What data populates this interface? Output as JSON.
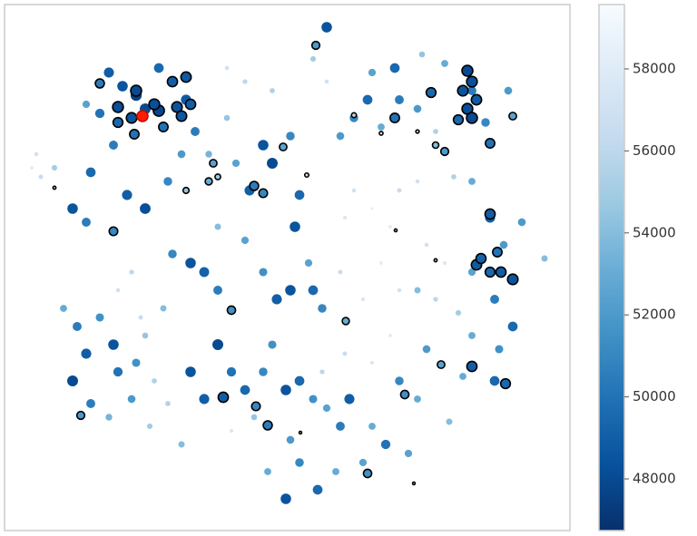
{
  "chart_data": {
    "type": "scatter",
    "xlim": [
      5,
      628
    ],
    "ylim": [
      585,
      5
    ],
    "colorbar": {
      "colormap": "Blues_r",
      "clim": [
        46740,
        59570
      ],
      "ticks": [
        48000,
        50000,
        52000,
        54000,
        56000,
        58000
      ]
    },
    "series": [
      {
        "edgecolor": "none",
        "x": [
          120,
          135,
          150,
          160,
          175,
          190,
          205,
          110,
          95,
          125,
          100,
          80,
          95,
          60,
          45,
          140,
          160,
          185,
          200,
          215,
          230,
          250,
          270,
          250,
          300,
          290,
          300,
          320,
          330,
          325,
          275,
          260,
          240,
          210,
          225,
          190,
          240,
          270,
          290,
          305,
          320,
          345,
          355,
          340,
          360,
          345,
          360,
          375,
          390,
          405,
          410,
          435,
          440,
          465,
          490,
          460,
          480,
          500,
          520,
          540,
          575,
          555,
          520,
          545,
          565,
          550,
          520,
          505,
          480,
          460,
          440,
          490,
          470,
          430,
          410,
          390,
          380,
          440,
          460,
          420,
          400,
          375,
          70,
          85,
          110,
          125,
          95,
          80,
          100,
          130,
          150,
          160,
          170,
          145,
          120,
          165,
          185,
          200,
          210,
          225,
          240,
          255,
          270,
          290,
          300,
          315,
          330,
          345,
          360,
          375,
          385,
          410,
          425,
          400,
          370,
          350,
          330,
          315,
          295,
          280,
          320,
          255,
          440,
          460,
          470,
          450,
          495,
          510,
          545,
          430,
          410,
          380,
          355,
          180,
          155,
          145,
          130,
          40,
          35,
          600,
          420,
          520,
          535,
          560
        ],
        "y": [
          80,
          95,
          105,
          120,
          75,
          90,
          110,
          125,
          115,
          160,
          190,
          230,
          245,
          185,
          195,
          215,
          230,
          200,
          170,
          145,
          170,
          130,
          90,
          75,
          100,
          160,
          180,
          150,
          215,
          250,
          210,
          180,
          250,
          290,
          300,
          280,
          320,
          265,
          300,
          330,
          320,
          320,
          340,
          290,
          90,
          65,
          30,
          150,
          130,
          110,
          80,
          75,
          110,
          60,
          70,
          120,
          145,
          195,
          200,
          240,
          245,
          270,
          300,
          330,
          360,
          385,
          370,
          345,
          330,
          320,
          320,
          290,
          270,
          250,
          230,
          210,
          240,
          210,
          200,
          290,
          330,
          300,
          340,
          360,
          350,
          380,
          390,
          420,
          445,
          410,
          400,
          370,
          420,
          440,
          460,
          470,
          445,
          490,
          410,
          440,
          380,
          410,
          430,
          410,
          380,
          430,
          420,
          440,
          450,
          470,
          440,
          470,
          490,
          510,
          520,
          540,
          510,
          550,
          520,
          460,
          485,
          475,
          420,
          440,
          385,
          500,
          465,
          415,
          420,
          370,
          400,
          390,
          410,
          340,
          350,
          300,
          320,
          170,
          185,
          285,
          140,
          100,
          135,
          100
        ],
        "values": [
          49000,
          48500,
          47500,
          48000,
          49500,
          48200,
          48800,
          50000,
          52500,
          50500,
          49500,
          48500,
          50500,
          55000,
          56500,
          49000,
          48200,
          51000,
          52000,
          50500,
          53500,
          54500,
          56000,
          57000,
          55500,
          48500,
          48000,
          51000,
          49500,
          48500,
          49000,
          52500,
          54000,
          48500,
          49200,
          51000,
          50500,
          52500,
          51500,
          49000,
          48500,
          49500,
          51000,
          52500,
          57000,
          55000,
          48500,
          52000,
          51000,
          49500,
          52500,
          49500,
          50500,
          54500,
          53000,
          52000,
          55500,
          55500,
          53000,
          49000,
          52000,
          52000,
          52500,
          50500,
          49500,
          51500,
          53000,
          55000,
          56000,
          54000,
          57000,
          57500,
          57000,
          58000,
          58500,
          57000,
          57500,
          56500,
          57000,
          58000,
          57500,
          56500,
          53000,
          50500,
          51500,
          48500,
          49000,
          48000,
          50500,
          50000,
          51500,
          54500,
          55500,
          52000,
          53500,
          55000,
          55500,
          54000,
          48500,
          49000,
          48000,
          50000,
          49500,
          51000,
          51500,
          48500,
          49500,
          51500,
          52500,
          50500,
          49000,
          53000,
          50000,
          52500,
          53000,
          49500,
          51000,
          48500,
          53000,
          54500,
          52000,
          57500,
          51000,
          53000,
          52000,
          52500,
          54000,
          53000,
          49500,
          58000,
          57500,
          56500,
          56000,
          54000,
          56500,
          56000,
          57000,
          57000,
          58000,
          54000,
          53000,
          50500,
          51000,
          52000
        ]
      },
      {
        "edgecolor": "#000000",
        "x": [
          110,
          150,
          130,
          145,
          175,
          195,
          210,
          130,
          180,
          200,
          148,
          190,
          205,
          170,
          515,
          520,
          510,
          525,
          515,
          505,
          520,
          475,
          540,
          565,
          480,
          490,
          435,
          390,
          420,
          460,
          280,
          290,
          235,
          240,
          230,
          205,
          312,
          338,
          348,
          125,
          60,
          540,
          548,
          525,
          540,
          552,
          565,
          530,
          480,
          436,
          255,
          381,
          486,
          520,
          557,
          446,
          246,
          282,
          295,
          89,
          405,
          331,
          456
        ],
        "y": [
          92,
          100,
          118,
          130,
          122,
          118,
          115,
          135,
          140,
          128,
          148,
          90,
          85,
          115,
          78,
          90,
          100,
          110,
          120,
          132,
          130,
          102,
          158,
          128,
          160,
          167,
          130,
          127,
          147,
          145,
          205,
          213,
          180,
          195,
          200,
          210,
          162,
          193,
          50,
          255,
          207,
          236,
          278,
          292,
          300,
          300,
          308,
          285,
          287,
          254,
          342,
          354,
          402,
          404,
          423,
          435,
          438,
          448,
          469,
          458,
          522,
          477,
          533
        ],
        "values": [
          50500,
          48000,
          48200,
          48500,
          47800,
          48500,
          49000,
          49500,
          50000,
          48700,
          50000,
          49000,
          48800,
          48300,
          48000,
          48300,
          48500,
          48800,
          48200,
          49500,
          48000,
          49500,
          50000,
          52500,
          54000,
          52000,
          50000,
          56000,
          57500,
          58000,
          50500,
          51000,
          52500,
          55000,
          53000,
          54500,
          52500,
          57000,
          52000,
          51000,
          58500,
          49000,
          50000,
          48800,
          49500,
          49000,
          48500,
          49200,
          58500,
          58800,
          51500,
          53000,
          52500,
          49000,
          49500,
          51500,
          49000,
          51000,
          50500,
          52000,
          51500,
          59000,
          59000
        ]
      },
      {
        "color": "#ff1a00",
        "edgecolor": "#c01000",
        "x": [
          157
        ],
        "y": [
          128
        ]
      }
    ]
  }
}
